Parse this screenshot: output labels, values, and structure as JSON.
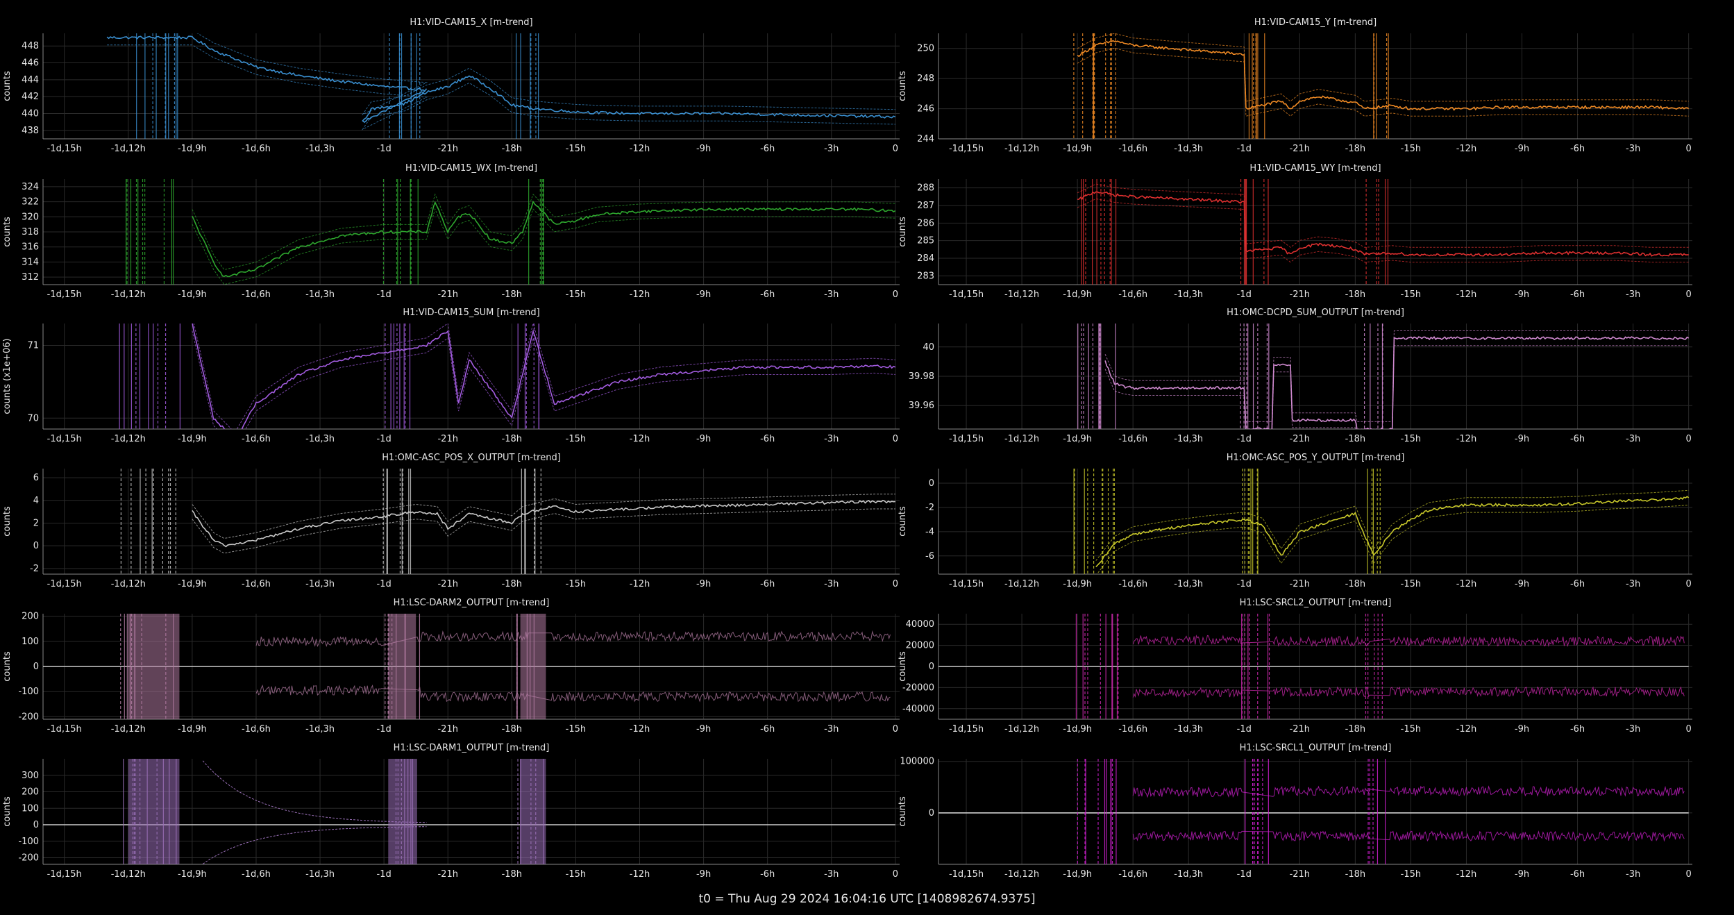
{
  "footer": "t0 = Thu Aug 29 2024 16:04:16 UTC [1408982674.9375]",
  "x_tick_labels": [
    "-1d,15h",
    "-1d,12h",
    "-1d,9h",
    "-1d,6h",
    "-1d,3h",
    "-1d",
    "-21h",
    "-18h",
    "-15h",
    "-12h",
    "-9h",
    "-6h",
    "-3h",
    "0"
  ],
  "chart_data": [
    {
      "type": "line",
      "title": "H1:VID-CAM15_X [m-trend]",
      "ylabel": "counts",
      "color": "#3a8fd0",
      "yticks": [
        438,
        440,
        442,
        444,
        446,
        448
      ],
      "ylim": [
        437,
        449.5
      ],
      "xlim": [
        -40,
        0.2
      ],
      "series": [
        {
          "x": [
            -37,
            -35,
            -34,
            -33.7,
            -33,
            -32,
            -31,
            -30,
            -28,
            -26,
            -24,
            -22,
            -25,
            -24.6,
            -23,
            -22,
            -21,
            -20,
            -19,
            -18,
            -17,
            -16,
            -15,
            -14,
            -12,
            -10,
            -8,
            -6,
            -4,
            -2,
            0
          ],
          "y": [
            449,
            449,
            449,
            449,
            449,
            447.5,
            446.5,
            445.5,
            444.5,
            443.8,
            443.2,
            442.8,
            439,
            440.5,
            441.2,
            442.5,
            443.2,
            444.5,
            443,
            441,
            440.6,
            440.4,
            440.2,
            440.1,
            440,
            440,
            440,
            439.9,
            439.8,
            439.7,
            439.6
          ]
        }
      ]
    },
    {
      "type": "line",
      "title": "H1:VID-CAM15_Y [m-trend]",
      "ylabel": "counts",
      "color": "#f08a24",
      "yticks": [
        244,
        246,
        248,
        250
      ],
      "ylim": [
        244,
        251
      ],
      "xlim": [
        -40.5,
        0.2
      ],
      "series": [
        {
          "x": [
            -33,
            -32,
            -31,
            -30,
            -28,
            -26,
            -24,
            -23.9,
            -22,
            -21.5,
            -21,
            -20,
            -19,
            -18,
            -17.5,
            -16,
            -15,
            -14,
            -12,
            -10,
            -8,
            -6,
            -4,
            -2,
            0
          ],
          "y": [
            249.5,
            250.2,
            250.5,
            250.2,
            250,
            249.8,
            249.6,
            246,
            246.5,
            246,
            246.5,
            246.8,
            246.6,
            246.4,
            246,
            246.2,
            246,
            246,
            246,
            246.1,
            246.1,
            246.1,
            246.1,
            246.1,
            246
          ]
        }
      ]
    },
    {
      "type": "line",
      "title": "H1:VID-CAM15_WX [m-trend]",
      "ylabel": "counts",
      "color": "#2ea82e",
      "yticks": [
        312,
        314,
        316,
        318,
        320,
        322,
        324
      ],
      "ylim": [
        311,
        325
      ],
      "xlim": [
        -40,
        0.2
      ],
      "series": [
        {
          "x": [
            -33,
            -32,
            -31.5,
            -30,
            -28,
            -26,
            -24,
            -22,
            -21.6,
            -21,
            -20.5,
            -20,
            -19,
            -18,
            -17.5,
            -17,
            -16,
            -15,
            -14,
            -12,
            -10,
            -8,
            -6,
            -4,
            -2,
            0
          ],
          "y": [
            320,
            314,
            312,
            313,
            316,
            317.5,
            318,
            318,
            322,
            318,
            320,
            320.5,
            317,
            316.5,
            318,
            322,
            319,
            319.5,
            320.3,
            320.7,
            320.9,
            321,
            321,
            321,
            321,
            320.8
          ]
        }
      ]
    },
    {
      "type": "line",
      "title": "H1:VID-CAM15_WY [m-trend]",
      "ylabel": "counts",
      "color": "#e03030",
      "yticks": [
        283,
        284,
        285,
        286,
        287,
        288
      ],
      "ylim": [
        282.5,
        288.5
      ],
      "xlim": [
        -40.5,
        0.2
      ],
      "series": [
        {
          "x": [
            -33,
            -32,
            -31,
            -30,
            -28,
            -26,
            -24,
            -23.9,
            -22,
            -21.5,
            -21,
            -20,
            -19,
            -18,
            -17.5,
            -16,
            -15,
            -14,
            -12,
            -10,
            -8,
            -6,
            -4,
            -2,
            0
          ],
          "y": [
            287.3,
            287.8,
            287.6,
            287.5,
            287.4,
            287.3,
            287.2,
            284.4,
            284.6,
            284.2,
            284.6,
            284.8,
            284.7,
            284.5,
            284.2,
            284.3,
            284.2,
            284.2,
            284.2,
            284.2,
            284.3,
            284.3,
            284.3,
            284.2,
            284.2
          ]
        }
      ]
    },
    {
      "type": "line",
      "title": "H1:VID-CAM15_SUM [m-trend]",
      "ylabel": "counts (x1e+06)",
      "color": "#a35ce0",
      "yticks": [
        70,
        71
      ],
      "ylim": [
        69.85,
        71.3
      ],
      "xlim": [
        -40,
        0.2
      ],
      "series": [
        {
          "x": [
            -33,
            -32,
            -31,
            -30,
            -28,
            -26,
            -24,
            -22,
            -21,
            -20.5,
            -20,
            -19,
            -18,
            -17,
            -16,
            -15,
            -13,
            -11,
            -9,
            -7,
            -5,
            -3,
            -1,
            0
          ],
          "y": [
            71.3,
            70,
            69.7,
            70.2,
            70.6,
            70.8,
            70.9,
            71,
            71.2,
            70.2,
            70.8,
            70.4,
            70,
            71.2,
            70.2,
            70.3,
            70.5,
            70.6,
            70.65,
            70.7,
            70.7,
            70.7,
            70.72,
            70.7
          ]
        }
      ]
    },
    {
      "type": "line",
      "title": "H1:OMC-DCPD_SUM_OUTPUT [m-trend]",
      "ylabel": "",
      "color": "#d08ad0",
      "yticks": [
        39.96,
        39.98,
        40.0
      ],
      "ylim": [
        39.944,
        40.016
      ],
      "xlim": [
        -40.5,
        0.2
      ],
      "series": [
        {
          "x": [
            -31.5,
            -31,
            -30.5,
            -30,
            -28,
            -26,
            -24,
            -23.9,
            -22.5,
            -22.4,
            -21.5,
            -21.4,
            -18,
            -17.9,
            -16,
            -15.9,
            -12,
            -9,
            -6,
            -3,
            0
          ],
          "y": [
            39.99,
            39.975,
            39.973,
            39.972,
            39.972,
            39.972,
            39.972,
            39.944,
            39.944,
            39.988,
            39.988,
            39.95,
            39.95,
            39.944,
            39.944,
            40.006,
            40.006,
            40.006,
            40.006,
            40.006,
            40.006
          ]
        }
      ]
    },
    {
      "type": "line",
      "title": "H1:OMC-ASC_POS_X_OUTPUT [m-trend]",
      "ylabel": "counts",
      "color": "#c8c8c8",
      "yticks": [
        -2,
        0,
        2,
        4,
        6
      ],
      "ylim": [
        -2.5,
        6.8
      ],
      "xlim": [
        -40,
        0.2
      ],
      "series": [
        {
          "x": [
            -33,
            -32,
            -31.5,
            -30,
            -28,
            -26,
            -24,
            -22.5,
            -21.5,
            -21,
            -20,
            -18,
            -17.5,
            -16,
            -15,
            -13,
            -11,
            -9,
            -7,
            -5,
            -3,
            -1,
            0
          ],
          "y": [
            3,
            0.5,
            0,
            0.5,
            1.5,
            2.2,
            2.6,
            3,
            2.8,
            1.5,
            2.8,
            2,
            2.8,
            3.5,
            3,
            3.2,
            3.4,
            3.5,
            3.6,
            3.7,
            3.8,
            3.9,
            3.9
          ]
        }
      ]
    },
    {
      "type": "line",
      "title": "H1:OMC-ASC_POS_Y_OUTPUT [m-trend]",
      "ylabel": "counts",
      "color": "#c8c82a",
      "yticks": [
        -6,
        -4,
        -2,
        0
      ],
      "ylim": [
        -7.5,
        1.2
      ],
      "xlim": [
        -40.5,
        0.2
      ],
      "series": [
        {
          "x": [
            -32,
            -31,
            -30,
            -28,
            -26,
            -24,
            -23,
            -22,
            -21,
            -20,
            -18,
            -17,
            -16,
            -15,
            -14,
            -12,
            -10,
            -8,
            -6,
            -4,
            -2,
            0
          ],
          "y": [
            -7,
            -5,
            -4.2,
            -3.7,
            -3.3,
            -3,
            -3.5,
            -6,
            -4,
            -3.5,
            -2.5,
            -6,
            -4,
            -3,
            -2.2,
            -1.8,
            -1.8,
            -1.8,
            -1.7,
            -1.5,
            -1.4,
            -1.2
          ]
        }
      ]
    },
    {
      "type": "line",
      "title": "H1:LSC-DARM2_OUTPUT [m-trend]",
      "ylabel": "counts",
      "color": "#b07aa0",
      "yticks": [
        -200,
        -100,
        0,
        100,
        200
      ],
      "ylim": [
        -210,
        210
      ],
      "xlim": [
        -40,
        0.2
      ],
      "series": [
        {
          "name": "",
          "x": [
            -40,
            0
          ],
          "y": [
            0,
            0
          ]
        }
      ],
      "envelope": [
        100,
        -95,
        120,
        -120
      ]
    },
    {
      "type": "line",
      "title": "H1:LSC-SRCL2_OUTPUT [m-trend]",
      "ylabel": "counts",
      "color": "#d02ab0",
      "yticks": [
        -40000,
        -20000,
        0,
        20000,
        40000
      ],
      "ylim": [
        -50000,
        50000
      ],
      "xlim": [
        -40.5,
        0.2
      ],
      "series": [
        {
          "x": [
            -40.5,
            0
          ],
          "y": [
            0,
            0
          ]
        }
      ],
      "envelope": [
        25000,
        -25000,
        24000,
        -24000
      ]
    },
    {
      "type": "line",
      "title": "H1:LSC-DARM1_OUTPUT [m-trend]",
      "ylabel": "counts",
      "color": "#9a70b8",
      "yticks": [
        -200,
        -100,
        0,
        100,
        200,
        300
      ],
      "ylim": [
        -240,
        400
      ],
      "xlim": [
        -40,
        0.2
      ],
      "series": [
        {
          "x": [
            -40,
            0
          ],
          "y": [
            0,
            0
          ]
        }
      ],
      "envelope": [
        0,
        0,
        0,
        0
      ]
    },
    {
      "type": "line",
      "title": "H1:LSC-SRCL1_OUTPUT [m-trend]",
      "ylabel": "counts",
      "color": "#d020d0",
      "yticks": [
        0,
        100000
      ],
      "ylim": [
        -100000,
        105000
      ],
      "xlim": [
        -40.5,
        0.2
      ],
      "series": [
        {
          "x": [
            -40.5,
            0
          ],
          "y": [
            0,
            0
          ]
        }
      ],
      "envelope": [
        40000,
        -45000,
        42000,
        -45000
      ]
    }
  ]
}
